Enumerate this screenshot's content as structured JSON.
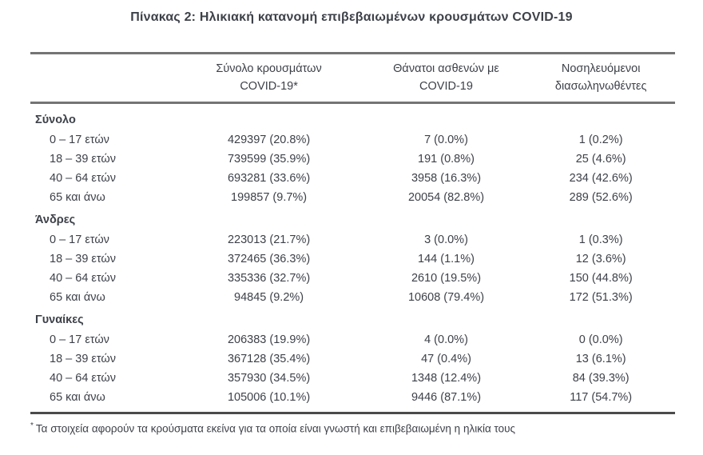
{
  "title": "Πίνακας 2: Ηλικιακή κατανομή επιβεβαιωμένων κρουσμάτων COVID-19",
  "columns": [
    {
      "line1": "Σύνολο κρουσμάτων",
      "line2": "COVID-19*"
    },
    {
      "line1": "Θάνατοι ασθενών με",
      "line2": "COVID-19"
    },
    {
      "line1": "Νοσηλευόμενοι",
      "line2": "διασωληνωθέντες"
    }
  ],
  "sections": [
    {
      "label": "Σύνολο",
      "rows": [
        {
          "age": "0 – 17 ετών",
          "cases": "429397 (20.8%)",
          "deaths": "7 (0.0%)",
          "intubated": "1 (0.2%)"
        },
        {
          "age": "18 – 39 ετών",
          "cases": "739599 (35.9%)",
          "deaths": "191 (0.8%)",
          "intubated": "25 (4.6%)"
        },
        {
          "age": "40 – 64 ετών",
          "cases": "693281 (33.6%)",
          "deaths": "3958 (16.3%)",
          "intubated": "234 (42.6%)"
        },
        {
          "age": "65 και άνω",
          "cases": "199857 (9.7%)",
          "deaths": "20054 (82.8%)",
          "intubated": "289 (52.6%)"
        }
      ]
    },
    {
      "label": "Άνδρες",
      "rows": [
        {
          "age": "0 – 17 ετών",
          "cases": "223013 (21.7%)",
          "deaths": "3 (0.0%)",
          "intubated": "1 (0.3%)"
        },
        {
          "age": "18 – 39 ετών",
          "cases": "372465 (36.3%)",
          "deaths": "144 (1.1%)",
          "intubated": "12 (3.6%)"
        },
        {
          "age": "40 – 64 ετών",
          "cases": "335336 (32.7%)",
          "deaths": "2610 (19.5%)",
          "intubated": "150 (44.8%)"
        },
        {
          "age": "65 και άνω",
          "cases": "94845 (9.2%)",
          "deaths": "10608 (79.4%)",
          "intubated": "172 (51.3%)"
        }
      ]
    },
    {
      "label": "Γυναίκες",
      "rows": [
        {
          "age": "0 – 17 ετών",
          "cases": "206383 (19.9%)",
          "deaths": "4 (0.0%)",
          "intubated": "0 (0.0%)"
        },
        {
          "age": "18 – 39 ετών",
          "cases": "367128 (35.4%)",
          "deaths": "47 (0.4%)",
          "intubated": "13 (6.1%)"
        },
        {
          "age": "40 – 64 ετών",
          "cases": "357930 (34.5%)",
          "deaths": "1348 (12.4%)",
          "intubated": "84 (39.3%)"
        },
        {
          "age": "65 και άνω",
          "cases": "105006 (10.1%)",
          "deaths": "9446 (87.1%)",
          "intubated": "117 (54.7%)"
        }
      ]
    }
  ],
  "footnote": {
    "marker": "*",
    "text": "Τα στοιχεία αφορούν τα κρούσματα εκείνα για τα οποία είναι γνωστή και επιβεβαιωμένη η ηλικία τους"
  },
  "colors": {
    "text": "#3d4149",
    "rule_light": "#747474",
    "rule_dark": "#4b4b4b"
  }
}
